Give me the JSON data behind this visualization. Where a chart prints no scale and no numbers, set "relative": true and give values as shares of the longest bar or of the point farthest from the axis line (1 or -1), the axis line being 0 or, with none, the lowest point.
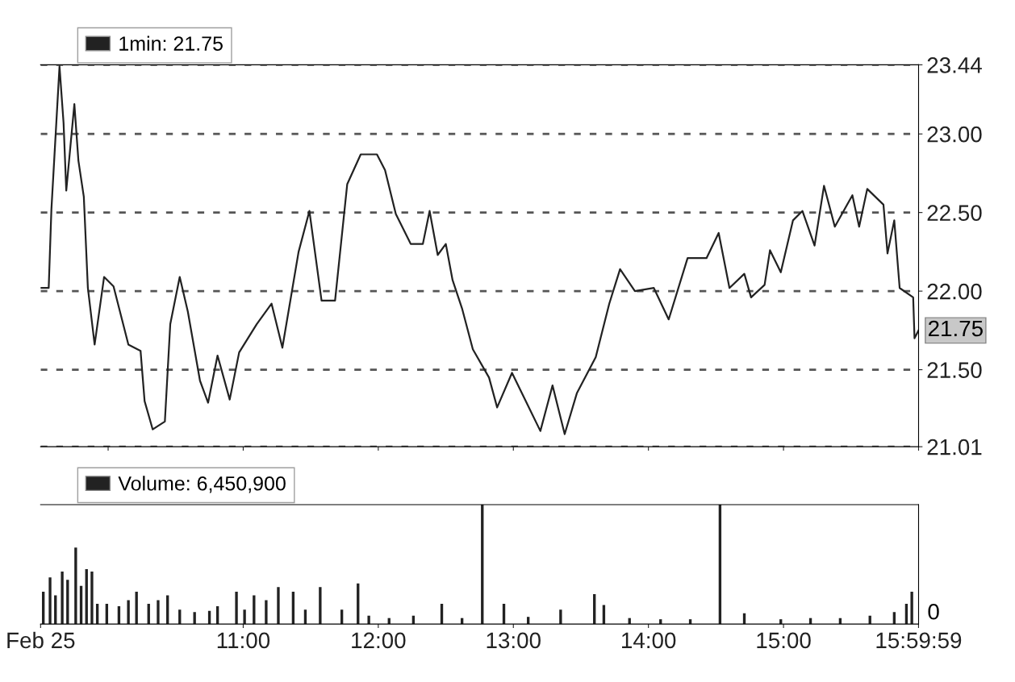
{
  "chart_data": [
    {
      "type": "line",
      "x": [
        9.5,
        9.56,
        9.58,
        9.64,
        9.67,
        9.69,
        9.75,
        9.78,
        9.82,
        9.85,
        9.9,
        9.97,
        10.04,
        10.15,
        10.24,
        10.27,
        10.33,
        10.42,
        10.46,
        10.53,
        10.59,
        10.68,
        10.74,
        10.81,
        10.9,
        10.97,
        11.1,
        11.21,
        11.29,
        11.41,
        11.49,
        11.58,
        11.68,
        11.77,
        11.87,
        11.99,
        12.05,
        12.13,
        12.24,
        12.33,
        12.38,
        12.44,
        12.5,
        12.55,
        12.62,
        12.7,
        12.82,
        12.88,
        12.99,
        13.2,
        13.29,
        13.38,
        13.47,
        13.61,
        13.71,
        13.79,
        13.9,
        14.04,
        14.15,
        14.29,
        14.43,
        14.52,
        14.6,
        14.71,
        14.76,
        14.86,
        14.9,
        14.98,
        15.07,
        15.14,
        15.23,
        15.3,
        15.38,
        15.51,
        15.56,
        15.62,
        15.74,
        15.77,
        15.82,
        15.86,
        15.96,
        15.97,
        16.0
      ],
      "series": [
        {
          "name": "1min: 21.75",
          "color": "#222222",
          "values": [
            22.02,
            22.02,
            22.52,
            23.43,
            23.07,
            22.64,
            23.19,
            22.83,
            22.6,
            22.02,
            21.66,
            22.09,
            22.03,
            21.66,
            21.62,
            21.3,
            21.12,
            21.17,
            21.79,
            22.09,
            21.87,
            21.43,
            21.29,
            21.59,
            21.31,
            21.61,
            21.79,
            21.92,
            21.64,
            22.25,
            22.51,
            21.94,
            21.94,
            22.68,
            22.87,
            22.87,
            22.77,
            22.49,
            22.3,
            22.3,
            22.51,
            22.23,
            22.3,
            22.07,
            21.89,
            21.63,
            21.45,
            21.26,
            21.48,
            21.11,
            21.4,
            21.09,
            21.35,
            21.58,
            21.92,
            22.14,
            22.0,
            22.02,
            21.82,
            22.21,
            22.21,
            22.37,
            22.02,
            22.11,
            21.96,
            22.04,
            22.26,
            22.12,
            22.45,
            22.51,
            22.29,
            22.67,
            22.41,
            22.61,
            22.41,
            22.65,
            22.55,
            22.24,
            22.45,
            22.02,
            21.96,
            21.7,
            21.75
          ]
        }
      ],
      "xlim": [
        9.5,
        16.0
      ],
      "ylim": [
        21.01,
        23.44
      ],
      "yticks": [
        21.01,
        {
          "value": 21.5,
          "label": "21.50"
        },
        {
          "value": 22,
          "label": "22.00"
        },
        {
          "value": 22.5,
          "label": "22.50"
        },
        {
          "value": 23,
          "label": "23.00"
        },
        23.44
      ],
      "annotations": [
        {
          "text": "21.75",
          "x": 16.0,
          "y": 21.75
        }
      ],
      "grid": "y",
      "legend": "top left",
      "line_style": "solid",
      "marker": "none",
      "tick_labels": "y"
    },
    {
      "type": "bar",
      "relative": true,
      "x": [
        9.52,
        9.57,
        9.61,
        9.66,
        9.7,
        9.76,
        9.8,
        9.84,
        9.88,
        9.92,
        9.99,
        10.08,
        10.15,
        10.21,
        10.3,
        10.37,
        10.44,
        10.53,
        10.64,
        10.75,
        10.81,
        10.95,
        11.01,
        11.08,
        11.17,
        11.26,
        11.37,
        11.46,
        11.57,
        11.73,
        11.85,
        11.93,
        12.08,
        12.26,
        12.47,
        12.62,
        12.77,
        12.93,
        13.11,
        13.35,
        13.6,
        13.67,
        13.86,
        14.09,
        14.31,
        14.53,
        14.71,
        14.98,
        15.2,
        15.42,
        15.64,
        15.82,
        15.91,
        15.95
      ],
      "series": [
        {
          "name": "Volume: 6,450,900",
          "color": "#222222",
          "values": [
            0.27,
            0.39,
            0.24,
            0.44,
            0.37,
            0.64,
            0.32,
            0.46,
            0.44,
            0.17,
            0.17,
            0.15,
            0.2,
            0.27,
            0.17,
            0.2,
            0.24,
            0.12,
            0.1,
            0.11,
            0.15,
            0.27,
            0.12,
            0.24,
            0.2,
            0.31,
            0.27,
            0.12,
            0.31,
            0.12,
            0.34,
            0.07,
            0.05,
            0.07,
            0.17,
            0.05,
            1,
            0.17,
            0.06,
            0.12,
            0.25,
            0.16,
            0.05,
            0.04,
            0.04,
            1,
            0.09,
            0.04,
            0.05,
            0.05,
            0.07,
            0.1,
            0.17,
            0.27
          ]
        }
      ],
      "xlim": [
        9.5,
        16.0
      ],
      "xticks": [
        {
          "value": 9.5,
          "label": "Feb 25"
        },
        {
          "value": 11,
          "label": "11:00"
        },
        {
          "value": 12,
          "label": "12:00"
        },
        {
          "value": 13,
          "label": "13:00"
        },
        {
          "value": 14,
          "label": "14:00"
        },
        {
          "value": 15,
          "label": "15:00"
        },
        {
          "value": 15.9997,
          "label": "15:59:59"
        }
      ],
      "annotations": [
        "0"
      ],
      "legend": "top left",
      "tick_labels": "x"
    }
  ]
}
